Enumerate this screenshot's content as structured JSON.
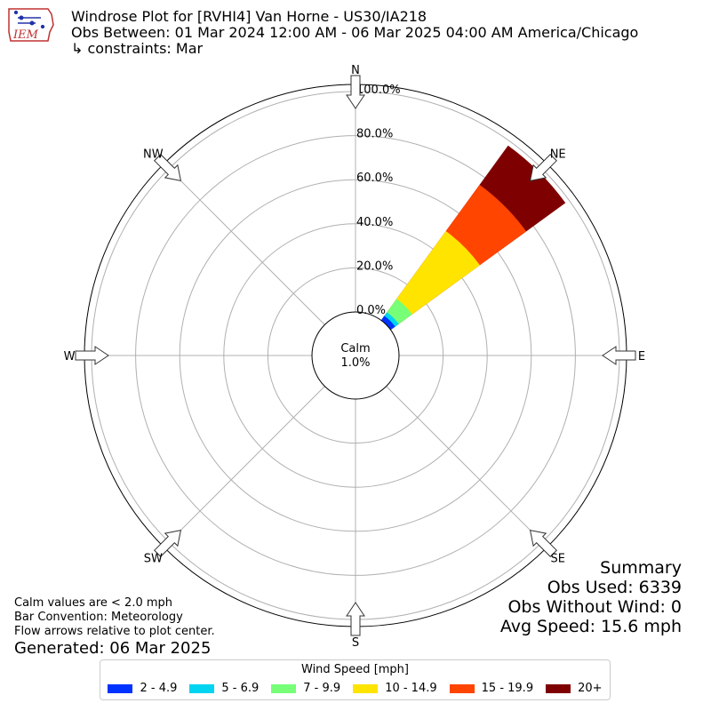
{
  "header": {
    "title": "Windrose Plot for [RVHI4] Van Horne - US30/IA218",
    "obs_between": "Obs Between: 01 Mar 2024 12:00 AM - 06 Mar 2025 04:00 AM America/Chicago",
    "constraints": "↳ constraints: Mar"
  },
  "logo": {
    "text": "IEM"
  },
  "chart_data": {
    "type": "windrose",
    "directions": [
      "N",
      "NE",
      "E",
      "SE",
      "S",
      "SW",
      "W",
      "NW"
    ],
    "radial_ticks": [
      "0.0%",
      "20.0%",
      "40.0%",
      "60.0%",
      "80.0%",
      "100.0%"
    ],
    "rmax": 100,
    "calm_label": "Calm",
    "calm_value": "1.0%",
    "grid": true,
    "petal": {
      "direction": "NE",
      "bins": [
        {
          "name": "2 - 4.9",
          "cum": 2.5,
          "color": "#0033ff"
        },
        {
          "name": "5 - 6.9",
          "cum": 4.5,
          "color": "#00d4f0"
        },
        {
          "name": "7 - 9.9",
          "cum": 12,
          "color": "#77ff77"
        },
        {
          "name": "10 - 14.9",
          "cum": 50,
          "color": "#ffe400"
        },
        {
          "name": "15 - 19.9",
          "cum": 76,
          "color": "#ff4500"
        },
        {
          "name": "20+",
          "cum": 98,
          "color": "#7f0000"
        }
      ]
    }
  },
  "summary": {
    "title": "Summary",
    "obs_used": "Obs Used: 6339",
    "obs_without_wind": "Obs Without Wind: 0",
    "avg_speed": "Avg Speed: 15.6 mph"
  },
  "notes": {
    "line1": "Calm values are < 2.0 mph",
    "line2": "Bar Convention: Meteorology",
    "line3": "Flow arrows relative to plot center."
  },
  "generated": "Generated: 06 Mar 2025",
  "legend": {
    "title": "Wind Speed [mph]",
    "items": [
      {
        "label": "2 - 4.9",
        "color": "#0033ff"
      },
      {
        "label": "5 - 6.9",
        "color": "#00d4f0"
      },
      {
        "label": "7 - 9.9",
        "color": "#77ff77"
      },
      {
        "label": "10 - 14.9",
        "color": "#ffe400"
      },
      {
        "label": "15 - 19.9",
        "color": "#ff4500"
      },
      {
        "label": "20+",
        "color": "#7f0000"
      }
    ]
  }
}
